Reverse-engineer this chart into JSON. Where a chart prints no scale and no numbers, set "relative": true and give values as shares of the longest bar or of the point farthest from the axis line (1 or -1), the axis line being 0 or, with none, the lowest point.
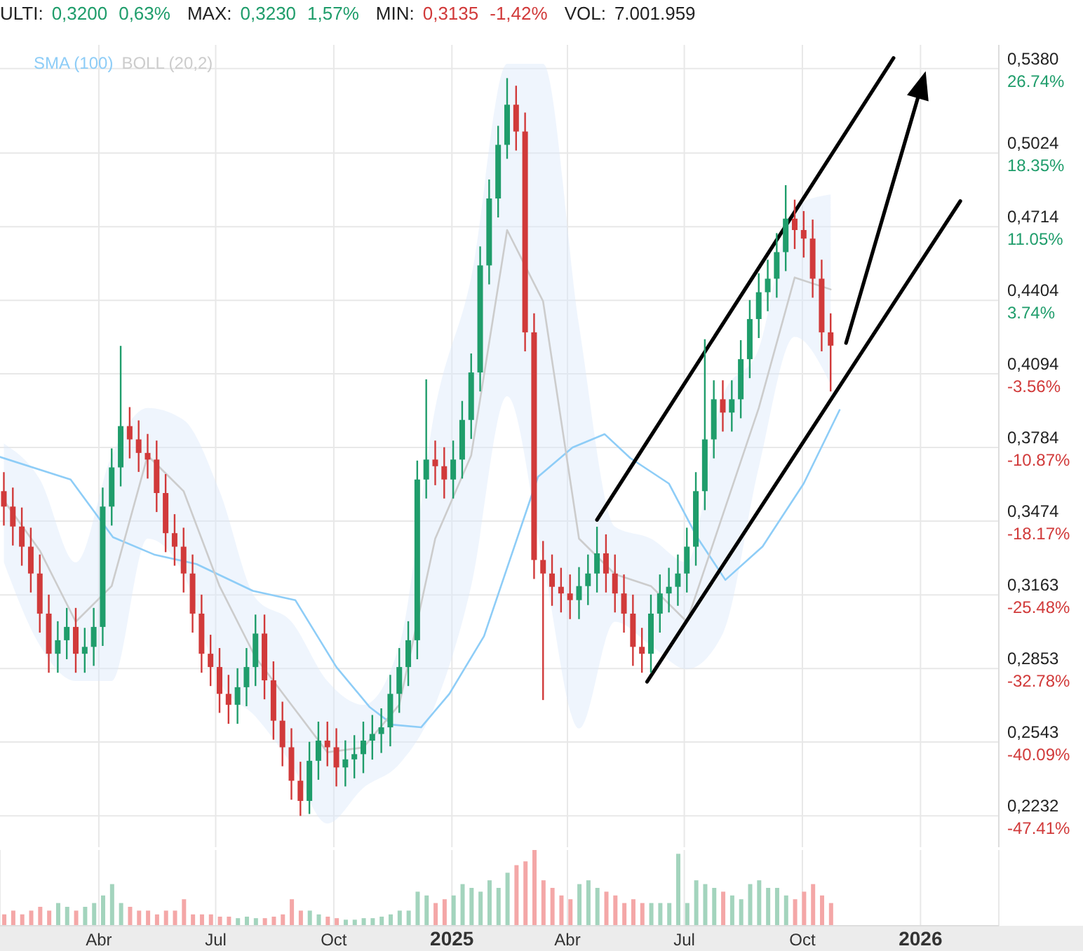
{
  "chart_data": [
    {
      "type": "candlestick",
      "annotations": [
        "ULTI:",
        "0,3200",
        "0,63%",
        "MAX:",
        "0,3230",
        "1,57%",
        "MIN:",
        "0,3135",
        "-1,42%",
        "VOL:",
        "7.001.959"
      ],
      "x": [
        "2024-01-18",
        "2024-01-25",
        "2024-02-01",
        "2024-02-08",
        "2024-02-15",
        "2024-02-22",
        "2024-02-29",
        "2024-03-07",
        "2024-03-14",
        "2024-03-21",
        "2024-03-28",
        "2024-04-04",
        "2024-04-11",
        "2024-04-18",
        "2024-04-25",
        "2024-05-02",
        "2024-05-09",
        "2024-05-16",
        "2024-05-23",
        "2024-05-30",
        "2024-06-06",
        "2024-06-13",
        "2024-06-20",
        "2024-06-27",
        "2024-07-04",
        "2024-07-11",
        "2024-07-18",
        "2024-07-25",
        "2024-08-01",
        "2024-08-08",
        "2024-08-15",
        "2024-08-22",
        "2024-08-29",
        "2024-09-05",
        "2024-09-12",
        "2024-09-19",
        "2024-09-26",
        "2024-10-03",
        "2024-10-10",
        "2024-10-17",
        "2024-10-24",
        "2024-10-31",
        "2024-11-07",
        "2024-11-14",
        "2024-11-21",
        "2024-11-28",
        "2024-12-05",
        "2024-12-12",
        "2024-12-19",
        "2024-12-26",
        "2025-01-02",
        "2025-01-09",
        "2025-01-16",
        "2025-01-23",
        "2025-01-30",
        "2025-02-06",
        "2025-02-13",
        "2025-02-20",
        "2025-02-27",
        "2025-03-06",
        "2025-03-13",
        "2025-03-20",
        "2025-03-27",
        "2025-04-03",
        "2025-04-10",
        "2025-04-17",
        "2025-04-24",
        "2025-05-01",
        "2025-05-08",
        "2025-05-15",
        "2025-05-22",
        "2025-05-29",
        "2025-06-05",
        "2025-06-12",
        "2025-06-19",
        "2025-06-26",
        "2025-07-03",
        "2025-07-10",
        "2025-07-17",
        "2025-07-24",
        "2025-07-31",
        "2025-08-07",
        "2025-08-14",
        "2025-08-21",
        "2025-08-28",
        "2025-09-04",
        "2025-09-11",
        "2025-09-18",
        "2025-09-25",
        "2025-10-02",
        "2025-10-09",
        "2025-10-16",
        "2025-10-23"
      ],
      "ohlc": [
        [
          0.36,
          0.368,
          0.3455,
          0.3535
        ],
        [
          0.3535,
          0.3615,
          0.3371,
          0.3451
        ],
        [
          0.3451,
          0.3531,
          0.3286,
          0.3366
        ],
        [
          0.3366,
          0.3446,
          0.3173,
          0.3253
        ],
        [
          0.3253,
          0.3333,
          0.3004,
          0.3084
        ],
        [
          0.3084,
          0.3164,
          0.2835,
          0.2915
        ],
        [
          0.2915,
          0.3052,
          0.2835,
          0.2972
        ],
        [
          0.2972,
          0.3108,
          0.2892,
          0.3028
        ],
        [
          0.3028,
          0.3108,
          0.2835,
          0.2915
        ],
        [
          0.2915,
          0.3024,
          0.2835,
          0.2944
        ],
        [
          0.2944,
          0.3108,
          0.2864,
          0.3028
        ],
        [
          0.3028,
          0.3615,
          0.2948,
          0.3535
        ],
        [
          0.3535,
          0.378,
          0.3455,
          0.37
        ],
        [
          0.37,
          0.4212,
          0.362,
          0.3874
        ],
        [
          0.3874,
          0.3954,
          0.3738,
          0.3818
        ],
        [
          0.3818,
          0.3898,
          0.3681,
          0.3761
        ],
        [
          0.3761,
          0.3841,
          0.3653,
          0.3733
        ],
        [
          0.3733,
          0.3813,
          0.3512,
          0.3592
        ],
        [
          0.3592,
          0.3672,
          0.3343,
          0.3423
        ],
        [
          0.3423,
          0.3503,
          0.3286,
          0.3366
        ],
        [
          0.3366,
          0.3446,
          0.3173,
          0.3253
        ],
        [
          0.3253,
          0.3333,
          0.3004,
          0.3084
        ],
        [
          0.3084,
          0.3164,
          0.2835,
          0.2915
        ],
        [
          0.2915,
          0.2995,
          0.2779,
          0.2859
        ],
        [
          0.2859,
          0.2939,
          0.2666,
          0.2746
        ],
        [
          0.2746,
          0.2826,
          0.262,
          0.27
        ],
        [
          0.27,
          0.2854,
          0.262,
          0.2774
        ],
        [
          0.2774,
          0.2939,
          0.2694,
          0.2859
        ],
        [
          0.2859,
          0.308,
          0.2779,
          0.3
        ],
        [
          0.3,
          0.308,
          0.2723,
          0.2803
        ],
        [
          0.2803,
          0.2883,
          0.2553,
          0.2633
        ],
        [
          0.2633,
          0.2713,
          0.2441,
          0.2521
        ],
        [
          0.2521,
          0.2601,
          0.23,
          0.238
        ],
        [
          0.238,
          0.246,
          0.2232,
          0.2295
        ],
        [
          0.2295,
          0.2544,
          0.224,
          0.2464
        ],
        [
          0.2464,
          0.2629,
          0.2384,
          0.2549
        ],
        [
          0.2549,
          0.2629,
          0.2441,
          0.2521
        ],
        [
          0.2521,
          0.2601,
          0.2356,
          0.2436
        ],
        [
          0.2436,
          0.255,
          0.2356,
          0.247
        ],
        [
          0.247,
          0.2572,
          0.239,
          0.2492
        ],
        [
          0.2492,
          0.2629,
          0.2412,
          0.2549
        ],
        [
          0.2549,
          0.2657,
          0.2469,
          0.2577
        ],
        [
          0.2577,
          0.2685,
          0.2497,
          0.2605
        ],
        [
          0.2605,
          0.2826,
          0.2525,
          0.2746
        ],
        [
          0.2746,
          0.2939,
          0.2666,
          0.2859
        ],
        [
          0.2859,
          0.3052,
          0.2779,
          0.2972
        ],
        [
          0.2972,
          0.3729,
          0.2892,
          0.3649
        ],
        [
          0.3649,
          0.4071,
          0.3569,
          0.3733
        ],
        [
          0.3733,
          0.3813,
          0.3625,
          0.3705
        ],
        [
          0.3705,
          0.3785,
          0.3569,
          0.3649
        ],
        [
          0.3649,
          0.3813,
          0.3569,
          0.3733
        ],
        [
          0.3733,
          0.398,
          0.3653,
          0.39
        ],
        [
          0.39,
          0.418,
          0.382,
          0.41
        ],
        [
          0.41,
          0.4631,
          0.402,
          0.4551
        ],
        [
          0.4551,
          0.4913,
          0.4471,
          0.4833
        ],
        [
          0.4833,
          0.5139,
          0.4753,
          0.5059
        ],
        [
          0.5059,
          0.534,
          0.5,
          0.5228
        ],
        [
          0.5228,
          0.5308,
          0.5035,
          0.5115
        ],
        [
          0.5115,
          0.5195,
          0.4189,
          0.4269
        ],
        [
          0.4269,
          0.4349,
          0.323,
          0.331
        ],
        [
          0.331,
          0.339,
          0.272,
          0.3253
        ],
        [
          0.3253,
          0.3333,
          0.3117,
          0.3197
        ],
        [
          0.3197,
          0.3277,
          0.3089,
          0.3169
        ],
        [
          0.3169,
          0.3249,
          0.3061,
          0.3141
        ],
        [
          0.3141,
          0.328,
          0.3061,
          0.32
        ],
        [
          0.32,
          0.3333,
          0.312,
          0.3253
        ],
        [
          0.3253,
          0.345,
          0.3173,
          0.3338
        ],
        [
          0.3338,
          0.3418,
          0.3173,
          0.3253
        ],
        [
          0.3253,
          0.3333,
          0.3089,
          0.3169
        ],
        [
          0.3169,
          0.3249,
          0.3004,
          0.3084
        ],
        [
          0.3084,
          0.3164,
          0.2864,
          0.2944
        ],
        [
          0.2944,
          0.3024,
          0.2835,
          0.2915
        ],
        [
          0.2915,
          0.3164,
          0.2835,
          0.3084
        ],
        [
          0.3084,
          0.3249,
          0.3004,
          0.3169
        ],
        [
          0.3169,
          0.3277,
          0.3089,
          0.3197
        ],
        [
          0.3197,
          0.3333,
          0.3117,
          0.3253
        ],
        [
          0.3253,
          0.3446,
          0.3173,
          0.3366
        ],
        [
          0.3366,
          0.368,
          0.3286,
          0.36
        ],
        [
          0.36,
          0.424,
          0.352,
          0.3818
        ],
        [
          0.3818,
          0.4067,
          0.3738,
          0.3987
        ],
        [
          0.3987,
          0.4067,
          0.3851,
          0.3931
        ],
        [
          0.3931,
          0.4067,
          0.3851,
          0.3987
        ],
        [
          0.3987,
          0.4236,
          0.3907,
          0.4156
        ],
        [
          0.4156,
          0.4405,
          0.4076,
          0.4325
        ],
        [
          0.4325,
          0.4518,
          0.4245,
          0.4438
        ],
        [
          0.4438,
          0.4575,
          0.4358,
          0.4495
        ],
        [
          0.4495,
          0.4687,
          0.4415,
          0.4607
        ],
        [
          0.4607,
          0.4889,
          0.4527,
          0.4748
        ],
        [
          0.4748,
          0.4828,
          0.462,
          0.47
        ],
        [
          0.47,
          0.478,
          0.4584,
          0.4664
        ],
        [
          0.4664,
          0.4744,
          0.4415,
          0.4495
        ],
        [
          0.4495,
          0.4575,
          0.4189,
          0.4269
        ],
        [
          0.4269,
          0.4349,
          0.402,
          0.4213
        ]
      ],
      "colors": [
        "#d13a3a",
        "#d13a3a",
        "#d13a3a",
        "#d13a3a",
        "#d13a3a",
        "#d13a3a",
        "#1f9d6b",
        "#1f9d6b",
        "#d13a3a",
        "#1f9d6b",
        "#1f9d6b",
        "#1f9d6b",
        "#1f9d6b",
        "#1f9d6b",
        "#d13a3a",
        "#d13a3a",
        "#d13a3a",
        "#d13a3a",
        "#d13a3a",
        "#d13a3a",
        "#d13a3a",
        "#d13a3a",
        "#d13a3a",
        "#d13a3a",
        "#d13a3a",
        "#d13a3a",
        "#1f9d6b",
        "#1f9d6b",
        "#1f9d6b",
        "#d13a3a",
        "#d13a3a",
        "#d13a3a",
        "#d13a3a",
        "#d13a3a",
        "#1f9d6b",
        "#1f9d6b",
        "#d13a3a",
        "#d13a3a",
        "#1f9d6b",
        "#1f9d6b",
        "#1f9d6b",
        "#1f9d6b",
        "#1f9d6b",
        "#1f9d6b",
        "#1f9d6b",
        "#1f9d6b",
        "#1f9d6b",
        "#1f9d6b",
        "#d13a3a",
        "#d13a3a",
        "#1f9d6b",
        "#1f9d6b",
        "#1f9d6b",
        "#1f9d6b",
        "#1f9d6b",
        "#1f9d6b",
        "#1f9d6b",
        "#d13a3a",
        "#d13a3a",
        "#d13a3a",
        "#d13a3a",
        "#d13a3a",
        "#d13a3a",
        "#d13a3a",
        "#1f9d6b",
        "#1f9d6b",
        "#1f9d6b",
        "#d13a3a",
        "#d13a3a",
        "#d13a3a",
        "#d13a3a",
        "#d13a3a",
        "#1f9d6b",
        "#1f9d6b",
        "#1f9d6b",
        "#1f9d6b",
        "#1f9d6b",
        "#1f9d6b",
        "#1f9d6b",
        "#1f9d6b",
        "#d13a3a",
        "#1f9d6b",
        "#1f9d6b",
        "#1f9d6b",
        "#1f9d6b",
        "#1f9d6b",
        "#1f9d6b",
        "#1f9d6b",
        "#d13a3a",
        "#d13a3a",
        "#d13a3a",
        "#d13a3a",
        "#d13a3a"
      ],
      "series": [
        {
          "name": "SMA (100)",
          "type": "line",
          "color": "#8ecdf7",
          "x": [
            "2024-01-15",
            "2024-03-10",
            "2024-04-12",
            "2024-05-14",
            "2024-06-16",
            "2024-07-30",
            "2024-09-01",
            "2024-10-03",
            "2024-10-29",
            "2024-11-16",
            "2024-12-08",
            "2024-12-30",
            "2025-01-26",
            "2025-03-09",
            "2025-04-05",
            "2025-04-30",
            "2025-05-20",
            "2025-06-19",
            "2025-07-11",
            "2025-08-02",
            "2025-08-31",
            "2025-10-02",
            "2025-10-30"
          ],
          "values": [
            0.3744,
            0.3649,
            0.3406,
            0.3333,
            0.3293,
            0.318,
            0.3141,
            0.2859,
            0.269,
            0.2616,
            0.2605,
            0.2746,
            0.2989,
            0.366,
            0.3784,
            0.384,
            0.3739,
            0.3632,
            0.3406,
            0.3226,
            0.3367,
            0.3632,
            0.3942
          ]
        },
        {
          "name": "BOLL (20,2)",
          "type": "line",
          "color": "#cccccc",
          "x": [
            "2024-01-18",
            "2024-02-15",
            "2024-03-14",
            "2024-04-11",
            "2024-05-09",
            "2024-06-06",
            "2024-07-04",
            "2024-08-01",
            "2024-08-29",
            "2024-09-26",
            "2024-10-24",
            "2024-11-21",
            "2024-12-19",
            "2025-01-16",
            "2025-02-13",
            "2025-03-13",
            "2025-04-10",
            "2025-05-08",
            "2025-06-05",
            "2025-07-03",
            "2025-07-31",
            "2025-08-28",
            "2025-09-25",
            "2025-10-23"
          ],
          "values": [
            0.356,
            0.335,
            0.305,
            0.32,
            0.375,
            0.36,
            0.32,
            0.29,
            0.27,
            0.25,
            0.252,
            0.27,
            0.34,
            0.375,
            0.47,
            0.44,
            0.34,
            0.325,
            0.32,
            0.305,
            0.35,
            0.395,
            0.45,
            0.445
          ],
          "lower": [
            0.33,
            0.295,
            0.28,
            0.28,
            0.34,
            0.325,
            0.28,
            0.265,
            0.245,
            0.22,
            0.235,
            0.245,
            0.27,
            0.32,
            0.4,
            0.33,
            0.26,
            0.305,
            0.295,
            0.285,
            0.3,
            0.37,
            0.425,
            0.405
          ],
          "upper": [
            0.38,
            0.365,
            0.33,
            0.375,
            0.395,
            0.39,
            0.36,
            0.315,
            0.305,
            0.28,
            0.27,
            0.295,
            0.395,
            0.45,
            0.54,
            0.54,
            0.43,
            0.345,
            0.34,
            0.33,
            0.4,
            0.42,
            0.48,
            0.485
          ]
        },
        {
          "type": "line",
          "color": "#000000",
          "x": [
            "2025-04-24",
            "2025-12-11"
          ],
          "values": [
            0.3479,
            0.5425
          ]
        },
        {
          "type": "line",
          "color": "#000000",
          "x": [
            "2025-06-02",
            "2026-02-01"
          ],
          "values": [
            0.2797,
            0.4822
          ]
        }
      ],
      "xlim": [
        "2024-01-15",
        "2026-03-03"
      ],
      "xticks": [
        {
          "value": "2024-04-01",
          "label": null
        },
        {
          "value": "2024-07-01",
          "label": null
        },
        {
          "value": "2024-10-01",
          "label": null
        },
        {
          "value": "2025-01-01",
          "label": null
        },
        {
          "value": "2025-04-01",
          "label": null
        },
        {
          "value": "2025-07-01",
          "label": null
        },
        {
          "value": "2025-10-01",
          "label": null
        },
        {
          "value": "2026-01-01",
          "label": null
        }
      ],
      "ylim": [
        0.21,
        0.548
      ],
      "yticks": [
        {
          "value": 0.538,
          "label": "0,5380"
        },
        {
          "value": 0.5024,
          "label": "0,5024"
        },
        {
          "value": 0.4714,
          "label": "0,4714"
        },
        {
          "value": 0.4404,
          "label": "0,4404"
        },
        {
          "value": 0.4094,
          "label": "0,4094"
        },
        {
          "value": 0.3784,
          "label": "0,3784"
        },
        {
          "value": 0.3474,
          "label": "0,3474"
        },
        {
          "value": 0.3163,
          "label": "0,3163"
        },
        {
          "value": 0.2853,
          "label": "0,2853"
        },
        {
          "value": 0.2543,
          "label": "0,2543"
        },
        {
          "value": 0.2232,
          "label": "0,2232"
        }
      ],
      "y2lim": [
        -50.53,
        29.09
      ],
      "y2ticks": [
        {
          "value": 26.74,
          "label": "26.74%"
        },
        {
          "value": 18.35,
          "label": "18.35%"
        },
        {
          "value": 11.05,
          "label": "11.05%"
        },
        {
          "value": 3.74,
          "label": "3.74%"
        },
        {
          "value": -3.56,
          "label": "-3.56%"
        },
        {
          "value": -10.87,
          "label": "-10.87%"
        },
        {
          "value": -18.17,
          "label": "-18.17%"
        },
        {
          "value": -25.48,
          "label": "-25.48%"
        },
        {
          "value": -32.78,
          "label": "-32.78%"
        },
        {
          "value": -40.09,
          "label": "-40.09%"
        },
        {
          "value": -47.41,
          "label": "-47.41%"
        }
      ],
      "grid": true,
      "legend": "top left",
      "tick_labels": "y"
    },
    {
      "type": "bar",
      "relative": true,
      "grid": "x",
      "x": [
        "2024-01-18",
        "2024-01-25",
        "2024-02-01",
        "2024-02-08",
        "2024-02-15",
        "2024-02-22",
        "2024-02-29",
        "2024-03-07",
        "2024-03-14",
        "2024-03-21",
        "2024-03-28",
        "2024-04-04",
        "2024-04-11",
        "2024-04-18",
        "2024-04-25",
        "2024-05-02",
        "2024-05-09",
        "2024-05-16",
        "2024-05-23",
        "2024-05-30",
        "2024-06-06",
        "2024-06-13",
        "2024-06-20",
        "2024-06-27",
        "2024-07-04",
        "2024-07-11",
        "2024-07-18",
        "2024-07-25",
        "2024-08-01",
        "2024-08-08",
        "2024-08-15",
        "2024-08-22",
        "2024-08-29",
        "2024-09-05",
        "2024-09-12",
        "2024-09-19",
        "2024-09-26",
        "2024-10-03",
        "2024-10-10",
        "2024-10-17",
        "2024-10-24",
        "2024-10-31",
        "2024-11-07",
        "2024-11-14",
        "2024-11-21",
        "2024-11-28",
        "2024-12-05",
        "2024-12-12",
        "2024-12-19",
        "2024-12-26",
        "2025-01-02",
        "2025-01-09",
        "2025-01-16",
        "2025-01-23",
        "2025-01-30",
        "2025-02-06",
        "2025-02-13",
        "2025-02-20",
        "2025-02-27",
        "2025-03-06",
        "2025-03-13",
        "2025-03-20",
        "2025-03-27",
        "2025-04-03",
        "2025-04-10",
        "2025-04-17",
        "2025-04-24",
        "2025-05-01",
        "2025-05-08",
        "2025-05-15",
        "2025-05-22",
        "2025-05-29",
        "2025-06-05",
        "2025-06-12",
        "2025-06-19",
        "2025-06-26",
        "2025-07-03",
        "2025-07-10",
        "2025-07-17",
        "2025-07-24",
        "2025-07-31",
        "2025-08-07",
        "2025-08-14",
        "2025-08-21",
        "2025-08-28",
        "2025-09-04",
        "2025-09-11",
        "2025-09-18",
        "2025-09-25",
        "2025-10-02",
        "2025-10-09",
        "2025-10-16",
        "2025-10-23"
      ],
      "values": [
        0.15,
        0.2,
        0.15,
        0.2,
        0.25,
        0.2,
        0.3,
        0.25,
        0.2,
        0.25,
        0.3,
        0.4,
        0.55,
        0.3,
        0.25,
        0.2,
        0.2,
        0.15,
        0.2,
        0.2,
        0.35,
        0.15,
        0.15,
        0.15,
        0.12,
        0.12,
        0.1,
        0.12,
        0.1,
        0.1,
        0.12,
        0.15,
        0.35,
        0.2,
        0.2,
        0.15,
        0.12,
        0.1,
        0.08,
        0.08,
        0.1,
        0.1,
        0.12,
        0.15,
        0.2,
        0.2,
        0.45,
        0.4,
        0.3,
        0.35,
        0.4,
        0.55,
        0.5,
        0.45,
        0.6,
        0.5,
        0.7,
        0.8,
        0.85,
        1,
        0.6,
        0.5,
        0.4,
        0.35,
        0.55,
        0.6,
        0.5,
        0.45,
        0.4,
        0.3,
        0.35,
        0.3,
        0.3,
        0.3,
        0.3,
        0.95,
        0.3,
        0.6,
        0.55,
        0.5,
        0.45,
        0.4,
        0.35,
        0.55,
        0.6,
        0.5,
        0.5,
        0.4,
        0.35,
        0.45,
        0.55,
        0.4,
        0.3
      ],
      "colors": [
        "#f4a7a7",
        "#f4a7a7",
        "#f4a7a7",
        "#f4a7a7",
        "#f4a7a7",
        "#f4a7a7",
        "#a3d4bd",
        "#a3d4bd",
        "#f4a7a7",
        "#a3d4bd",
        "#a3d4bd",
        "#a3d4bd",
        "#a3d4bd",
        "#a3d4bd",
        "#f4a7a7",
        "#f4a7a7",
        "#f4a7a7",
        "#f4a7a7",
        "#f4a7a7",
        "#f4a7a7",
        "#f4a7a7",
        "#f4a7a7",
        "#f4a7a7",
        "#f4a7a7",
        "#f4a7a7",
        "#f4a7a7",
        "#a3d4bd",
        "#a3d4bd",
        "#a3d4bd",
        "#f4a7a7",
        "#f4a7a7",
        "#f4a7a7",
        "#f4a7a7",
        "#f4a7a7",
        "#a3d4bd",
        "#a3d4bd",
        "#f4a7a7",
        "#f4a7a7",
        "#a3d4bd",
        "#a3d4bd",
        "#a3d4bd",
        "#a3d4bd",
        "#a3d4bd",
        "#a3d4bd",
        "#a3d4bd",
        "#a3d4bd",
        "#a3d4bd",
        "#a3d4bd",
        "#f4a7a7",
        "#f4a7a7",
        "#a3d4bd",
        "#a3d4bd",
        "#a3d4bd",
        "#a3d4bd",
        "#a3d4bd",
        "#a3d4bd",
        "#a3d4bd",
        "#f4a7a7",
        "#f4a7a7",
        "#f4a7a7",
        "#f4a7a7",
        "#f4a7a7",
        "#f4a7a7",
        "#f4a7a7",
        "#a3d4bd",
        "#a3d4bd",
        "#a3d4bd",
        "#f4a7a7",
        "#f4a7a7",
        "#f4a7a7",
        "#f4a7a7",
        "#f4a7a7",
        "#a3d4bd",
        "#a3d4bd",
        "#a3d4bd",
        "#a3d4bd",
        "#a3d4bd",
        "#a3d4bd",
        "#a3d4bd",
        "#a3d4bd",
        "#f4a7a7",
        "#a3d4bd",
        "#a3d4bd",
        "#a3d4bd",
        "#a3d4bd",
        "#a3d4bd",
        "#a3d4bd",
        "#a3d4bd",
        "#f4a7a7",
        "#f4a7a7",
        "#f4a7a7",
        "#f4a7a7",
        "#f4a7a7"
      ],
      "xlim": [
        "2024-01-15",
        "2026-03-03"
      ],
      "xticks": [
        {
          "value": "2024-04-01",
          "label": "Abr"
        },
        {
          "value": "2024-07-01",
          "label": "Jul"
        },
        {
          "value": "2024-10-01",
          "label": "Oct"
        },
        {
          "value": "2025-01-01",
          "label": "2025"
        },
        {
          "value": "2025-04-01",
          "label": "Abr"
        },
        {
          "value": "2025-07-01",
          "label": "Jul"
        },
        {
          "value": "2025-10-01",
          "label": "Oct"
        },
        {
          "value": "2026-01-01",
          "label": "2026"
        }
      ]
    }
  ]
}
